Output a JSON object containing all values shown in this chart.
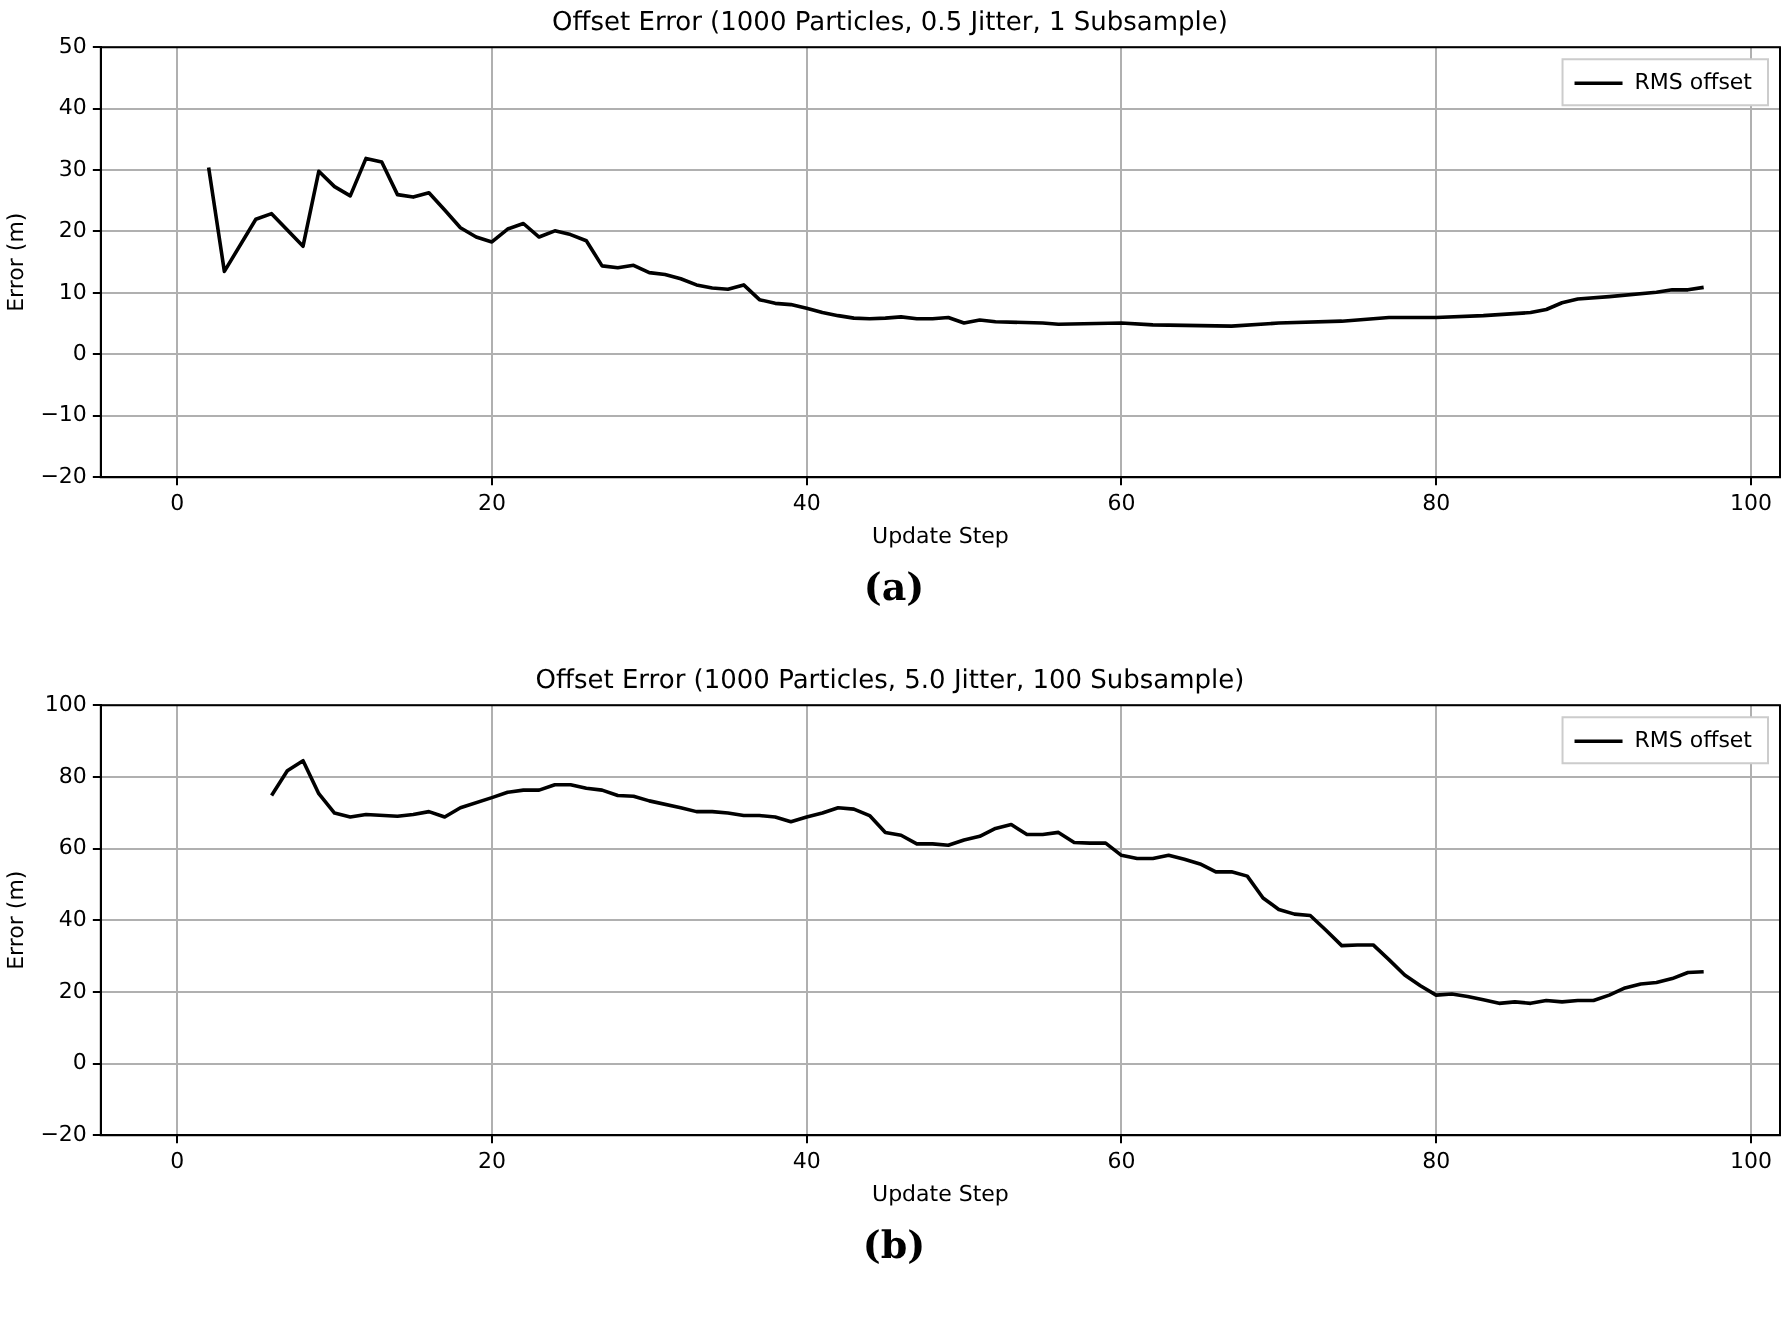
{
  "chart_data": [
    {
      "type": "line",
      "title": "Offset Error (1000 Particles, 0.5 Jitter, 1 Subsample)",
      "xlabel": "Update Step",
      "ylabel": "Error (m)",
      "annotations": [
        "(a)"
      ],
      "series": [
        {
          "name": "RMS offset",
          "color": "#000000",
          "x": [
            2,
            3,
            5,
            6,
            8,
            9,
            10,
            11,
            12,
            13,
            14,
            15,
            16,
            17,
            18,
            19,
            20,
            21,
            22,
            23,
            24,
            25,
            26,
            27,
            28,
            29,
            30,
            31,
            32,
            33,
            34,
            35,
            36,
            37,
            38,
            39,
            40,
            41,
            42,
            43,
            44,
            45,
            46,
            47,
            48,
            49,
            50,
            51,
            52,
            55,
            56,
            60,
            62,
            67,
            70,
            74,
            77,
            80,
            83,
            86,
            87,
            88,
            89,
            91,
            94,
            95,
            96,
            97
          ],
          "values": [
            30.4,
            13.5,
            22,
            22.9,
            17.6,
            29.8,
            27.3,
            25.8,
            31.9,
            31.3,
            26,
            25.6,
            26.3,
            23.5,
            20.6,
            19.1,
            18.3,
            20.4,
            21.3,
            19.1,
            20.1,
            19.5,
            18.5,
            14.4,
            14.1,
            14.5,
            13.3,
            13,
            12.3,
            11.3,
            10.8,
            10.6,
            11.3,
            8.9,
            8.3,
            8.1,
            7.5,
            6.8,
            6.3,
            5.9,
            5.8,
            5.9,
            6.1,
            5.8,
            5.8,
            6,
            5.1,
            5.6,
            5.3,
            5.1,
            4.9,
            5.1,
            4.8,
            4.6,
            5.1,
            5.4,
            6,
            6,
            6.3,
            6.8,
            7.3,
            8.4,
            9,
            9.4,
            10.1,
            10.5,
            10.5,
            10.9
          ]
        }
      ],
      "xlim": [
        -4.85,
        101.85
      ],
      "xticks": [
        0,
        20,
        40,
        60,
        80,
        100
      ],
      "ylim": [
        -20,
        50
      ],
      "yticks": [
        -20,
        -10,
        0,
        10,
        20,
        30,
        40,
        50
      ],
      "grid": true,
      "legend": "top right",
      "marker": "none",
      "line_style": "solid"
    },
    {
      "type": "line",
      "title": "Offset Error (1000 Particles, 5.0 Jitter, 100 Subsample)",
      "xlabel": "Update Step",
      "ylabel": "Error (m)",
      "annotations": [
        "(b)"
      ],
      "series": [
        {
          "name": "RMS offset",
          "color": "#000000",
          "x": [
            6,
            7,
            8,
            9,
            10,
            11,
            12,
            14,
            15,
            16,
            17,
            18,
            20,
            21,
            22,
            23,
            24,
            25,
            26,
            27,
            28,
            29,
            30,
            32,
            33,
            34,
            35,
            36,
            37,
            38,
            39,
            40,
            41,
            42,
            43,
            44,
            45,
            46,
            47,
            48,
            49,
            50,
            51,
            52,
            53,
            54,
            55,
            56,
            57,
            58,
            59,
            60,
            61,
            62,
            63,
            64,
            65,
            66,
            67,
            68,
            69,
            70,
            71,
            72,
            73,
            74,
            75,
            76,
            77,
            78,
            79,
            80,
            81,
            82,
            83,
            84,
            85,
            86,
            87,
            88,
            89,
            90,
            91,
            92,
            93,
            94,
            95,
            96,
            97
          ],
          "values": [
            74.8,
            81.7,
            84.5,
            75.3,
            69.9,
            68.8,
            69.5,
            69,
            69.5,
            70.3,
            68.8,
            71.4,
            74.2,
            75.7,
            76.3,
            76.3,
            77.8,
            77.8,
            76.8,
            76.3,
            74.8,
            74.6,
            73.3,
            71.4,
            70.3,
            70.3,
            69.9,
            69.2,
            69.2,
            68.8,
            67.5,
            68.8,
            69.9,
            71.4,
            71,
            69.2,
            64.5,
            63.7,
            61.3,
            61.3,
            60.9,
            62.4,
            63.4,
            65.6,
            66.7,
            63.9,
            63.9,
            64.5,
            61.7,
            61.5,
            61.5,
            58.1,
            57.2,
            57.2,
            58.1,
            57,
            55.7,
            53.5,
            53.5,
            52.3,
            46.2,
            43,
            41.7,
            41.3,
            37.2,
            32.9,
            33.1,
            33.1,
            29,
            24.7,
            21.7,
            19.1,
            19.4,
            18.7,
            17.8,
            16.8,
            17.2,
            16.8,
            17.6,
            17.2,
            17.6,
            17.6,
            19.1,
            21.1,
            22.2,
            22.6,
            23.7,
            25.4,
            25.6
          ]
        }
      ],
      "xlim": [
        -4.85,
        101.85
      ],
      "xticks": [
        0,
        20,
        40,
        60,
        80,
        100
      ],
      "ylim": [
        -20,
        100
      ],
      "yticks": [
        -20,
        0,
        20,
        40,
        60,
        80,
        100
      ],
      "grid": true,
      "legend": "top right",
      "marker": "none",
      "line_style": "solid"
    }
  ]
}
